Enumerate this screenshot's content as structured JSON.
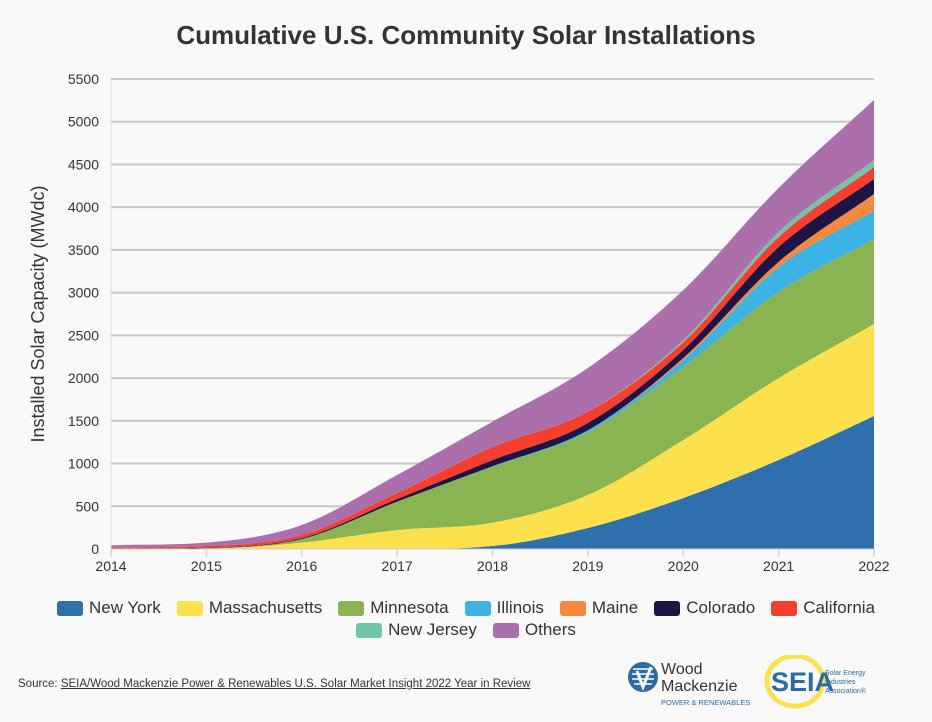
{
  "chart_data": {
    "type": "area",
    "stacked": true,
    "title": "Cumulative U.S. Community Solar Installations",
    "xlabel": "",
    "ylabel": "Installed Solar Capacity (MWdc)",
    "x": [
      2014,
      2015,
      2016,
      2017,
      2018,
      2019,
      2020,
      2021,
      2022
    ],
    "xlim": [
      2014,
      2022
    ],
    "ylim": [
      0,
      5500
    ],
    "yticks": [
      0,
      500,
      1000,
      1500,
      2000,
      2500,
      3000,
      3500,
      4000,
      4500,
      5000,
      5500
    ],
    "grid": true,
    "legend_position": "bottom",
    "series": [
      {
        "name": "New York",
        "color": "#2e6fad",
        "values": [
          0,
          0,
          0,
          0,
          35,
          246,
          597,
          1042,
          1556
        ]
      },
      {
        "name": "Massachusetts",
        "color": "#fde14c",
        "values": [
          0,
          5,
          75,
          222,
          273,
          386,
          678,
          958,
          1077
        ]
      },
      {
        "name": "Minnesota",
        "color": "#8ab452",
        "values": [
          0,
          5,
          42,
          332,
          655,
          738,
          855,
          1008,
          995
        ]
      },
      {
        "name": "Illinois",
        "color": "#3bb3e4",
        "values": [
          0,
          0,
          0,
          0,
          5,
          20,
          80,
          292,
          331
        ]
      },
      {
        "name": "Maine",
        "color": "#f6883c",
        "values": [
          0,
          0,
          0,
          0,
          0,
          0,
          25,
          60,
          195
        ]
      },
      {
        "name": "Colorado",
        "color": "#1e1546",
        "values": [
          5,
          5,
          12,
          31,
          72,
          85,
          95,
          174,
          176
        ]
      },
      {
        "name": "California",
        "color": "#f63e2d",
        "values": [
          15,
          20,
          35,
          70,
          153,
          130,
          90,
          116,
          140
        ]
      },
      {
        "name": "New Jersey",
        "color": "#70c5ab",
        "values": [
          0,
          0,
          0,
          0,
          0,
          0,
          25,
          60,
          82
        ]
      },
      {
        "name": "Others",
        "color": "#ab6fac",
        "values": [
          25,
          40,
          117,
          211,
          297,
          513,
          585,
          515,
          703
        ]
      }
    ]
  },
  "source": {
    "prefix": "Source: ",
    "link_text": "SEIA/Wood Mackenzie Power & Renewables U.S. Solar Market Insight 2022 Year in Review"
  },
  "logos": {
    "wood_mackenzie": [
      "Wood",
      "Mackenzie",
      "POWER & RENEWABLES"
    ],
    "seia": [
      "SEIA",
      "Solar Energy",
      "Industries",
      "Association®"
    ]
  }
}
